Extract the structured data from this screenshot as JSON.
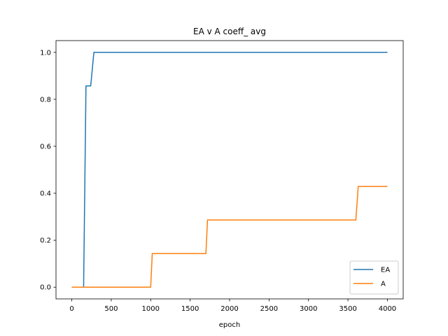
{
  "chart_data": {
    "type": "line",
    "title": "EA v A coeff_ avg",
    "xlabel": "epoch",
    "ylabel": "",
    "xlim": [
      -200,
      4200
    ],
    "ylim": [
      -0.05,
      1.05
    ],
    "xticks": [
      0,
      500,
      1000,
      1500,
      2000,
      2500,
      3000,
      3500,
      4000
    ],
    "yticks": [
      0.0,
      0.2,
      0.4,
      0.6,
      0.8,
      1.0
    ],
    "xtick_labels": [
      "0",
      "500",
      "1000",
      "1500",
      "2000",
      "2500",
      "3000",
      "3500",
      "4000"
    ],
    "ytick_labels": [
      "0.0",
      "0.2",
      "0.4",
      "0.6",
      "0.8",
      "1.0"
    ],
    "grid": false,
    "legend_position": "lower-right",
    "series": [
      {
        "name": "EA",
        "color": "#1f77b4",
        "x": [
          0,
          150,
          180,
          240,
          280,
          4000
        ],
        "y": [
          0.0,
          0.0,
          0.857,
          0.857,
          1.0,
          1.0
        ]
      },
      {
        "name": "A",
        "color": "#ff7f0e",
        "x": [
          0,
          1000,
          1020,
          1700,
          1720,
          3600,
          3630,
          4000
        ],
        "y": [
          0.0,
          0.0,
          0.143,
          0.143,
          0.286,
          0.286,
          0.429,
          0.429
        ]
      }
    ]
  }
}
